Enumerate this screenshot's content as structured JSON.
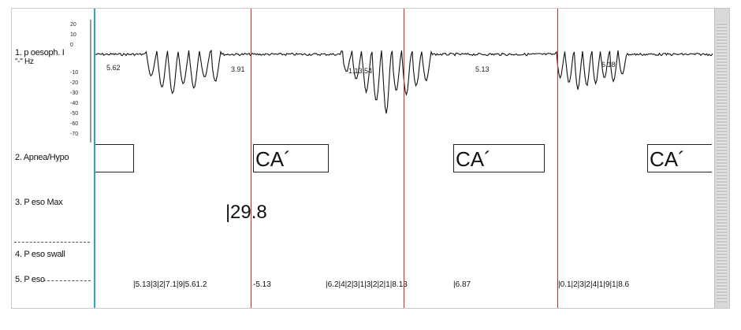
{
  "channels": [
    {
      "label": "1. p oesoph. I"
    },
    {
      "label": "2. Apnea/Hypo"
    },
    {
      "label": "3. P eso Max"
    },
    {
      "label": "4. P eso swall"
    },
    {
      "label": "5. P eso"
    }
  ],
  "channel1_rate": "\"-\" Hz",
  "y_ticks": [
    "20",
    "10",
    "0",
    "-10",
    "-20",
    "-30",
    "-40",
    "-50",
    "-60",
    "-70"
  ],
  "trace_values": [
    "5.62",
    "3.91",
    "-1.13.54",
    "5.13",
    "6.18"
  ],
  "events": [
    "",
    "CA´",
    "CA´",
    "CA´"
  ],
  "peso_max": "29.8",
  "bottom_values": [
    "|5.13|3|2|7.1|9|5.61.2",
    "-5.13",
    "|6.2|4|2|3|1|3|2|2|1|8.13",
    "|6.87",
    "|0.1|2|3|2|4|1|9|1|8.6"
  ],
  "colors": {
    "cursor": "#2aa6c4",
    "marker": "#d62828",
    "trace": "#111111"
  }
}
